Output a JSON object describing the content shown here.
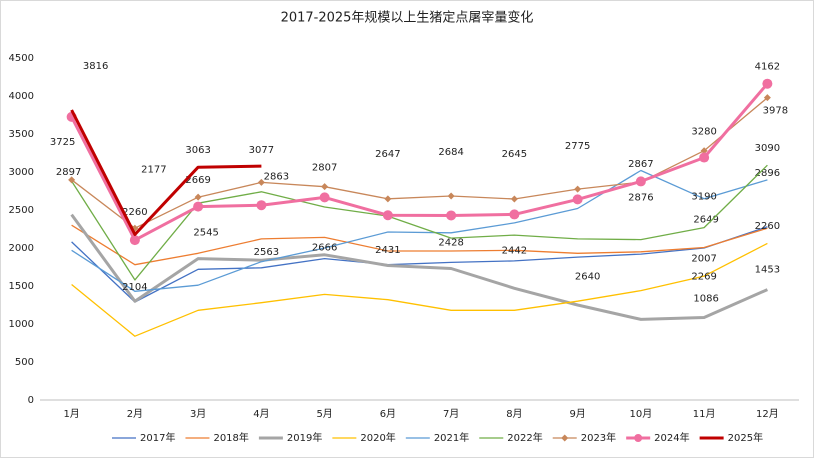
{
  "chart_data": {
    "type": "line",
    "title": "2017-2025年规模以上生猪定点屠宰量变化",
    "categories": [
      "1月",
      "2月",
      "3月",
      "4月",
      "5月",
      "6月",
      "7月",
      "8月",
      "9月",
      "10月",
      "11月",
      "12月"
    ],
    "ylim": [
      0,
      4500
    ],
    "yticks": [
      0,
      500,
      1000,
      1500,
      2000,
      2500,
      3000,
      3500,
      4000,
      4500
    ],
    "grid": false,
    "legend": "bottom",
    "series": [
      {
        "name": "2017年",
        "color": "#4472c4",
        "values": [
          2080,
          1290,
          1720,
          1740,
          1860,
          1780,
          1810,
          1830,
          1880,
          1920,
          2000,
          2280
        ]
      },
      {
        "name": "2018年",
        "color": "#ed7d31",
        "values": [
          2300,
          1780,
          1930,
          2120,
          2140,
          1960,
          1960,
          1970,
          1930,
          1950,
          2007,
          2260
        ],
        "value_labels": [
          null,
          null,
          null,
          null,
          null,
          null,
          null,
          null,
          null,
          null,
          2007,
          2260
        ]
      },
      {
        "name": "2019年",
        "color": "#a5a5a5",
        "values": [
          2440,
          1300,
          1860,
          1840,
          1910,
          1770,
          1730,
          1470,
          1250,
          1060,
          1086,
          1453
        ],
        "value_labels": [
          null,
          null,
          null,
          null,
          null,
          null,
          null,
          null,
          null,
          null,
          1086,
          1453
        ]
      },
      {
        "name": "2020年",
        "color": "#ffc000",
        "values": [
          1520,
          840,
          1180,
          1280,
          1390,
          1320,
          1180,
          1180,
          1300,
          1440,
          1630,
          2060
        ]
      },
      {
        "name": "2021年",
        "color": "#5b9bd5",
        "values": [
          1970,
          1430,
          1510,
          1820,
          2000,
          2210,
          2200,
          2330,
          2520,
          3020,
          2649,
          2896
        ],
        "value_labels": [
          null,
          null,
          null,
          null,
          null,
          null,
          null,
          null,
          null,
          null,
          2649,
          2896
        ]
      },
      {
        "name": "2022年",
        "color": "#70ad47",
        "values": [
          2880,
          1580,
          2590,
          2740,
          2540,
          2420,
          2130,
          2170,
          2120,
          2110,
          2269,
          3090
        ],
        "value_labels": [
          null,
          null,
          null,
          null,
          null,
          null,
          null,
          null,
          null,
          null,
          2269,
          3090
        ]
      },
      {
        "name": "2023年",
        "color": "#c8875a",
        "marker": "diamond",
        "values": [
          2897,
          2260,
          2669,
          2863,
          2807,
          2647,
          2684,
          2645,
          2775,
          2867,
          3280,
          3978
        ],
        "value_labels": [
          2897,
          2260,
          2669,
          2863,
          2807,
          2647,
          2684,
          2645,
          2775,
          2867,
          3280,
          3978
        ]
      },
      {
        "name": "2024年",
        "color": "#f06fa0",
        "marker": "circle",
        "values": [
          3725,
          2104,
          2545,
          2563,
          2666,
          2431,
          2428,
          2442,
          2640,
          2876,
          3190,
          4162
        ],
        "value_labels": [
          3725,
          2104,
          2545,
          2563,
          2666,
          2431,
          2428,
          2442,
          2640,
          2876,
          3190,
          4162
        ]
      },
      {
        "name": "2025年",
        "color": "#c00000",
        "values": [
          3816,
          2177,
          3063,
          3077,
          null,
          null,
          null,
          null,
          null,
          null,
          null,
          null
        ],
        "value_labels": [
          3816,
          2177,
          3063,
          3077,
          null,
          null,
          null,
          null,
          null,
          null,
          null,
          null
        ]
      }
    ]
  }
}
